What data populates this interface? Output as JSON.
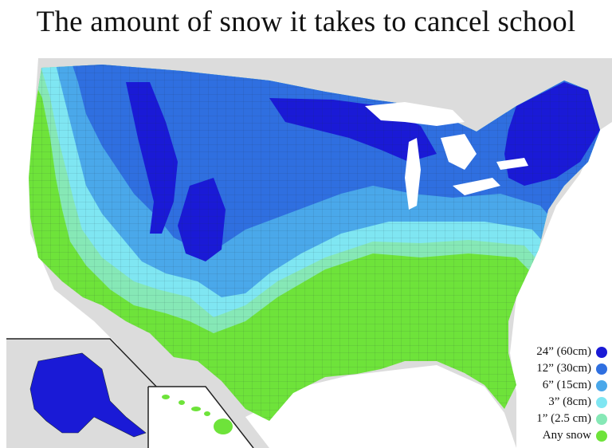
{
  "title": "The amount of snow it takes to cancel school",
  "legend": [
    {
      "label": "24” (60cm)",
      "color": "#1a1ad6"
    },
    {
      "label": "12” (30cm)",
      "color": "#2f6fe0"
    },
    {
      "label": "6” (15cm)",
      "color": "#4aa8ea"
    },
    {
      "label": "3” (8cm)",
      "color": "#7fe6f2"
    },
    {
      "label": "1” (2.5 cm)",
      "color": "#86e8b6"
    },
    {
      "label": "Any snow",
      "color": "#6ee33a"
    }
  ],
  "colors": {
    "background_land": "#dcdcdc",
    "water": "#ffffff",
    "inset_border": "#222222"
  }
}
